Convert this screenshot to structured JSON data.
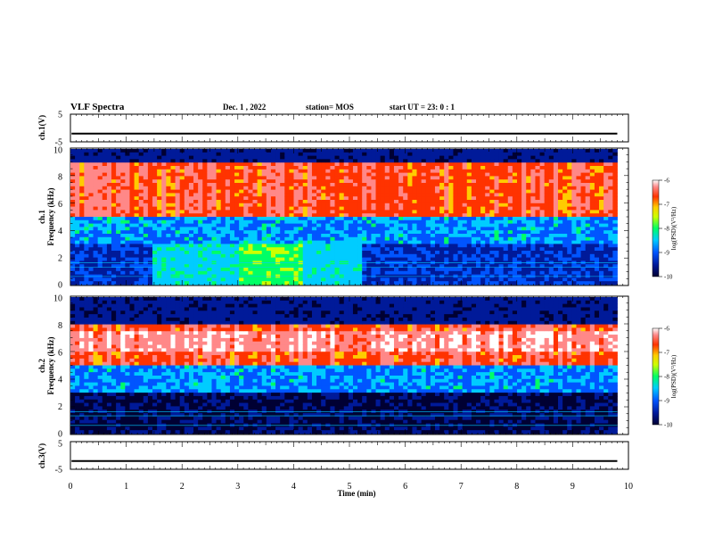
{
  "header": {
    "title": "VLF Spectra",
    "date": "Dec. 1 , 2022",
    "station": "station= MOS",
    "start_ut": "start  UT  =   23: 0  : 1"
  },
  "chart_data": [
    {
      "type": "line",
      "panel": "ch1-waveform",
      "ylabel": "ch.1(V)",
      "ylim": [
        -5,
        5
      ],
      "yticks": [
        "5",
        "-5"
      ],
      "series_level": -2,
      "x_range": [
        0,
        10
      ]
    },
    {
      "type": "heatmap",
      "panel": "ch1-spectrogram",
      "ylabel": "ch.1\nFrequency (kHz)",
      "ylim": [
        0,
        10
      ],
      "yticks": [
        "10",
        "8",
        "6",
        "4",
        "2",
        "0"
      ],
      "data_end_min": 9.8,
      "colorbar": {
        "label": "log(PSD)(V²/Hz)",
        "ticks": [
          "-6",
          "-7",
          "-8",
          "-9",
          "-10"
        ],
        "range": [
          -10,
          -6
        ]
      },
      "band_khz": [
        5,
        9
      ],
      "wideband_hiss_min": [
        3,
        4.2
      ],
      "low_band_khz": [
        0,
        3
      ]
    },
    {
      "type": "heatmap",
      "panel": "ch2-spectrogram",
      "ylabel": "ch.2\nFrequency (kHz)",
      "ylim": [
        0,
        10
      ],
      "yticks": [
        "10",
        "8",
        "6",
        "4",
        "2",
        "0"
      ],
      "data_end_min": 9.8,
      "colorbar": {
        "label": "log(PSD)(V²/Hz)",
        "ticks": [
          "-6",
          "-7",
          "-8",
          "-9",
          "-10"
        ],
        "range": [
          -10,
          -6
        ]
      },
      "band_khz": [
        5,
        8
      ],
      "hot_band_khz": [
        6,
        7.5
      ]
    },
    {
      "type": "line",
      "panel": "ch3-waveform",
      "ylabel": "ch.3(V)",
      "ylim": [
        -5,
        5
      ],
      "yticks": [
        "5",
        "-5"
      ],
      "series_level": -2,
      "x_range": [
        0,
        10
      ]
    }
  ],
  "xaxis": {
    "label": "Time (min)",
    "range": [
      0,
      10
    ],
    "ticks": [
      "0",
      "1",
      "2",
      "3",
      "4",
      "5",
      "6",
      "7",
      "8",
      "9",
      "10"
    ]
  },
  "colormap": [
    "#000033",
    "#001a99",
    "#0055ff",
    "#00ccff",
    "#00ff66",
    "#ccff00",
    "#ffcc00",
    "#ff3300",
    "#ff8888",
    "#ffffff"
  ]
}
